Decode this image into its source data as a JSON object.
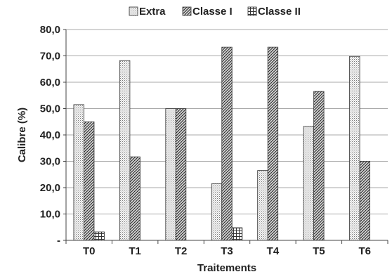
{
  "chart_data": {
    "type": "bar",
    "xlabel": "Traitements",
    "ylabel": "Calibre (%)",
    "categories": [
      "T0",
      "T1",
      "T2",
      "T3",
      "T4",
      "T5",
      "T6"
    ],
    "ylim": [
      0,
      80
    ],
    "yticks": [
      "-",
      "10,0",
      "20,0",
      "30,0",
      "40,0",
      "50,0",
      "60,0",
      "70,0",
      "80,0"
    ],
    "grid": true,
    "legend_position": "top",
    "series": [
      {
        "name": "Extra",
        "pattern": "dots",
        "values": [
          51.5,
          68.2,
          50.0,
          21.5,
          26.5,
          43.2,
          69.8
        ]
      },
      {
        "name": "Classe I",
        "pattern": "diagonal-weave",
        "values": [
          45.0,
          31.7,
          50.0,
          73.3,
          73.3,
          56.5,
          30.0
        ]
      },
      {
        "name": "Classe II",
        "pattern": "grid",
        "values": [
          3.2,
          0,
          0,
          4.8,
          0,
          0,
          0
        ]
      }
    ]
  }
}
